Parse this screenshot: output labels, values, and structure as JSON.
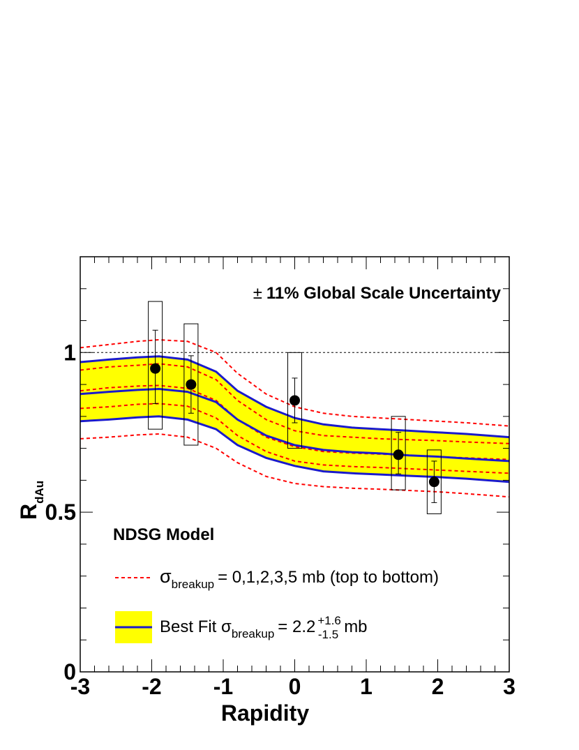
{
  "chart_data": {
    "type": "scatter",
    "title": "",
    "xlabel": "Rapidity",
    "ylabel": "R",
    "ylabel_subscript": "dAu",
    "xlim": [
      -3,
      3
    ],
    "ylim": [
      0,
      1.3
    ],
    "x_ticks": [
      -3,
      -2,
      -1,
      0,
      1,
      2,
      3
    ],
    "x_tick_labels": [
      "-3",
      "-2",
      "-1",
      "0",
      "1",
      "2",
      "3"
    ],
    "y_ticks": [
      0,
      0.5,
      1
    ],
    "y_tick_labels": [
      "0",
      "0.5",
      "1"
    ],
    "reference_line_y": 1,
    "annotation_global": "11% Global Scale Uncertainty",
    "annotation_pm": "±",
    "model_label": "NDSG Model",
    "legend": {
      "breakup_sigma": "σ",
      "breakup_sub": "breakup",
      "breakup_values": "= 0,1,2,3,5 mb (top to bottom)",
      "best_fit_prefix": "Best Fit σ",
      "best_fit_sub": "breakup",
      "best_fit_value": "= 2.2",
      "best_fit_plus": "+1.6",
      "best_fit_minus": "-1.5",
      "best_fit_unit": "mb"
    },
    "colors": {
      "band_fill": "#ffff00",
      "band_line": "#1a1acc",
      "dashed": "#ff0000",
      "data": "#000000"
    },
    "points": [
      {
        "x": -1.95,
        "y": 0.95,
        "stat_lo": 0.84,
        "stat_hi": 1.07,
        "sys_lo": 0.76,
        "sys_hi": 1.16
      },
      {
        "x": -1.45,
        "y": 0.9,
        "stat_lo": 0.81,
        "stat_hi": 0.99,
        "sys_lo": 0.71,
        "sys_hi": 1.09
      },
      {
        "x": 0.0,
        "y": 0.85,
        "stat_lo": 0.78,
        "stat_hi": 0.92,
        "sys_lo": 0.7,
        "sys_hi": 1.0
      },
      {
        "x": 1.45,
        "y": 0.68,
        "stat_lo": 0.62,
        "stat_hi": 0.75,
        "sys_lo": 0.57,
        "sys_hi": 0.8
      },
      {
        "x": 1.95,
        "y": 0.595,
        "stat_lo": 0.53,
        "stat_hi": 0.66,
        "sys_lo": 0.495,
        "sys_hi": 0.695
      }
    ],
    "model_x": [
      -3,
      -2.6,
      -2.2,
      -1.9,
      -1.5,
      -1.1,
      -0.8,
      -0.4,
      0,
      0.4,
      0.8,
      1.2,
      1.6,
      2.0,
      2.4,
      3.0
    ],
    "dashed_curves": [
      {
        "name": "0 mb",
        "values": [
          1.015,
          1.025,
          1.035,
          1.04,
          1.035,
          1.0,
          0.935,
          0.87,
          0.83,
          0.81,
          0.8,
          0.795,
          0.79,
          0.785,
          0.78,
          0.77
        ]
      },
      {
        "name": "1 mb",
        "values": [
          0.945,
          0.955,
          0.96,
          0.965,
          0.955,
          0.915,
          0.85,
          0.79,
          0.755,
          0.74,
          0.735,
          0.73,
          0.727,
          0.724,
          0.72,
          0.715
        ]
      },
      {
        "name": "2 mb",
        "values": [
          0.88,
          0.89,
          0.895,
          0.897,
          0.888,
          0.85,
          0.79,
          0.735,
          0.705,
          0.69,
          0.685,
          0.682,
          0.678,
          0.674,
          0.67,
          0.665
        ]
      },
      {
        "name": "3 mb",
        "values": [
          0.825,
          0.83,
          0.838,
          0.84,
          0.832,
          0.795,
          0.74,
          0.69,
          0.66,
          0.648,
          0.643,
          0.64,
          0.636,
          0.632,
          0.628,
          0.622
        ]
      },
      {
        "name": "5 mb",
        "values": [
          0.73,
          0.735,
          0.742,
          0.745,
          0.735,
          0.7,
          0.655,
          0.612,
          0.59,
          0.58,
          0.575,
          0.572,
          0.568,
          0.564,
          0.558,
          0.548
        ]
      }
    ],
    "best_fit_band": {
      "upper": [
        0.97,
        0.978,
        0.985,
        0.988,
        0.978,
        0.94,
        0.88,
        0.83,
        0.795,
        0.775,
        0.765,
        0.76,
        0.755,
        0.75,
        0.745,
        0.735
      ],
      "central": [
        0.87,
        0.877,
        0.883,
        0.886,
        0.877,
        0.845,
        0.79,
        0.74,
        0.71,
        0.695,
        0.688,
        0.684,
        0.678,
        0.674,
        0.668,
        0.66
      ],
      "lower": [
        0.785,
        0.79,
        0.797,
        0.8,
        0.79,
        0.76,
        0.71,
        0.67,
        0.645,
        0.628,
        0.622,
        0.618,
        0.614,
        0.61,
        0.605,
        0.595
      ]
    }
  }
}
